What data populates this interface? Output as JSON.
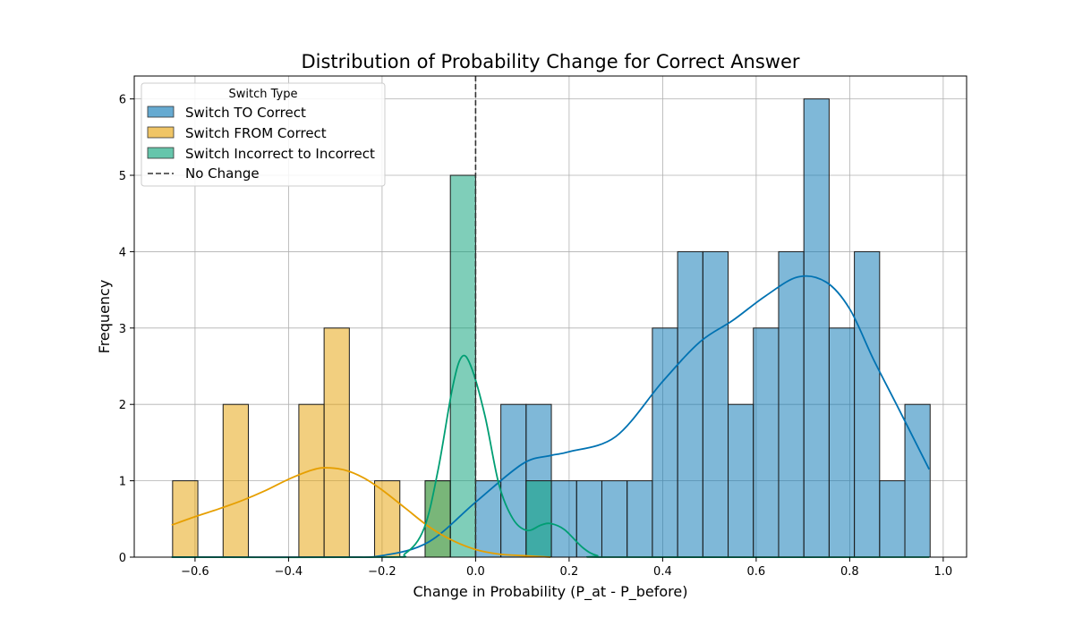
{
  "chart_data": {
    "type": "bar",
    "title": "Distribution of Probability Change for Correct Answer",
    "xlabel": "Change in Probability (P_at - P_before)",
    "ylabel": "Frequency",
    "xlim": [
      -0.73,
      1.05
    ],
    "ylim": [
      0,
      6.3
    ],
    "xticks": [
      -0.6,
      -0.4,
      -0.2,
      0.0,
      0.2,
      0.4,
      0.6,
      0.8,
      1.0
    ],
    "xtick_labels": [
      "−0.6",
      "−0.4",
      "−0.2",
      "0.0",
      "0.2",
      "0.4",
      "0.6",
      "0.8",
      "1.0"
    ],
    "yticks": [
      0,
      1,
      2,
      3,
      4,
      5,
      6
    ],
    "ytick_labels": [
      "0",
      "1",
      "2",
      "3",
      "4",
      "5",
      "6"
    ],
    "grid": true,
    "legend_position": "top-left",
    "legend_title": "Switch Type",
    "bin_width": 0.054,
    "reference_line": {
      "x": 0.0,
      "label": "No Change",
      "color": "#333333",
      "style": "dashed"
    },
    "series": [
      {
        "name": "Switch TO Correct",
        "color": "#0072b2",
        "bins": [
          {
            "x0": 0.0,
            "x1": 0.054,
            "count": 1
          },
          {
            "x0": 0.054,
            "x1": 0.108,
            "count": 2
          },
          {
            "x0": 0.108,
            "x1": 0.162,
            "count": 2
          },
          {
            "x0": 0.162,
            "x1": 0.216,
            "count": 1
          },
          {
            "x0": 0.216,
            "x1": 0.27,
            "count": 1
          },
          {
            "x0": 0.27,
            "x1": 0.324,
            "count": 1
          },
          {
            "x0": 0.324,
            "x1": 0.378,
            "count": 1
          },
          {
            "x0": 0.378,
            "x1": 0.432,
            "count": 3
          },
          {
            "x0": 0.432,
            "x1": 0.486,
            "count": 4
          },
          {
            "x0": 0.486,
            "x1": 0.54,
            "count": 4
          },
          {
            "x0": 0.54,
            "x1": 0.594,
            "count": 2
          },
          {
            "x0": 0.594,
            "x1": 0.648,
            "count": 3
          },
          {
            "x0": 0.648,
            "x1": 0.702,
            "count": 4
          },
          {
            "x0": 0.702,
            "x1": 0.756,
            "count": 6
          },
          {
            "x0": 0.756,
            "x1": 0.81,
            "count": 3
          },
          {
            "x0": 0.81,
            "x1": 0.864,
            "count": 4
          },
          {
            "x0": 0.864,
            "x1": 0.918,
            "count": 1
          },
          {
            "x0": 0.918,
            "x1": 0.972,
            "count": 2
          }
        ],
        "kde": [
          [
            -0.65,
            0.0
          ],
          [
            -0.3,
            0.0
          ],
          [
            -0.2,
            0.02
          ],
          [
            -0.1,
            0.2
          ],
          [
            0.0,
            0.72
          ],
          [
            0.1,
            1.22
          ],
          [
            0.16,
            1.33
          ],
          [
            0.2,
            1.38
          ],
          [
            0.3,
            1.58
          ],
          [
            0.4,
            2.3
          ],
          [
            0.48,
            2.82
          ],
          [
            0.55,
            3.1
          ],
          [
            0.62,
            3.42
          ],
          [
            0.69,
            3.67
          ],
          [
            0.75,
            3.6
          ],
          [
            0.8,
            3.25
          ],
          [
            0.85,
            2.6
          ],
          [
            0.9,
            2.0
          ],
          [
            0.97,
            1.15
          ]
        ]
      },
      {
        "name": "Switch FROM Correct",
        "color": "#e69f00",
        "bins": [
          {
            "x0": -0.648,
            "x1": -0.594,
            "count": 1
          },
          {
            "x0": -0.54,
            "x1": -0.486,
            "count": 2
          },
          {
            "x0": -0.378,
            "x1": -0.324,
            "count": 2
          },
          {
            "x0": -0.324,
            "x1": -0.27,
            "count": 3
          },
          {
            "x0": -0.216,
            "x1": -0.162,
            "count": 1
          },
          {
            "x0": -0.108,
            "x1": -0.054,
            "count": 1
          }
        ],
        "kde": [
          [
            -0.65,
            0.42
          ],
          [
            -0.6,
            0.53
          ],
          [
            -0.55,
            0.63
          ],
          [
            -0.5,
            0.74
          ],
          [
            -0.45,
            0.87
          ],
          [
            -0.4,
            1.02
          ],
          [
            -0.35,
            1.14
          ],
          [
            -0.32,
            1.17
          ],
          [
            -0.28,
            1.14
          ],
          [
            -0.24,
            1.04
          ],
          [
            -0.2,
            0.88
          ],
          [
            -0.15,
            0.64
          ],
          [
            -0.1,
            0.4
          ],
          [
            -0.05,
            0.22
          ],
          [
            0.0,
            0.1
          ],
          [
            0.05,
            0.04
          ],
          [
            0.1,
            0.02
          ],
          [
            0.16,
            0.0
          ]
        ]
      },
      {
        "name": "Switch Incorrect to Incorrect",
        "color": "#009e73",
        "bins": [
          {
            "x0": -0.108,
            "x1": -0.054,
            "count": 1
          },
          {
            "x0": -0.054,
            "x1": 0.0,
            "count": 5
          },
          {
            "x0": 0.108,
            "x1": 0.162,
            "count": 1
          }
        ],
        "kde": [
          [
            -0.65,
            0.0
          ],
          [
            -0.2,
            0.0
          ],
          [
            -0.15,
            0.05
          ],
          [
            -0.11,
            0.38
          ],
          [
            -0.08,
            1.15
          ],
          [
            -0.05,
            2.2
          ],
          [
            -0.03,
            2.62
          ],
          [
            -0.01,
            2.5
          ],
          [
            0.02,
            1.85
          ],
          [
            0.05,
            0.95
          ],
          [
            0.08,
            0.5
          ],
          [
            0.11,
            0.35
          ],
          [
            0.14,
            0.42
          ],
          [
            0.16,
            0.44
          ],
          [
            0.19,
            0.36
          ],
          [
            0.23,
            0.12
          ],
          [
            0.26,
            0.02
          ],
          [
            0.3,
            0.0
          ],
          [
            0.97,
            0.0
          ]
        ]
      }
    ]
  }
}
